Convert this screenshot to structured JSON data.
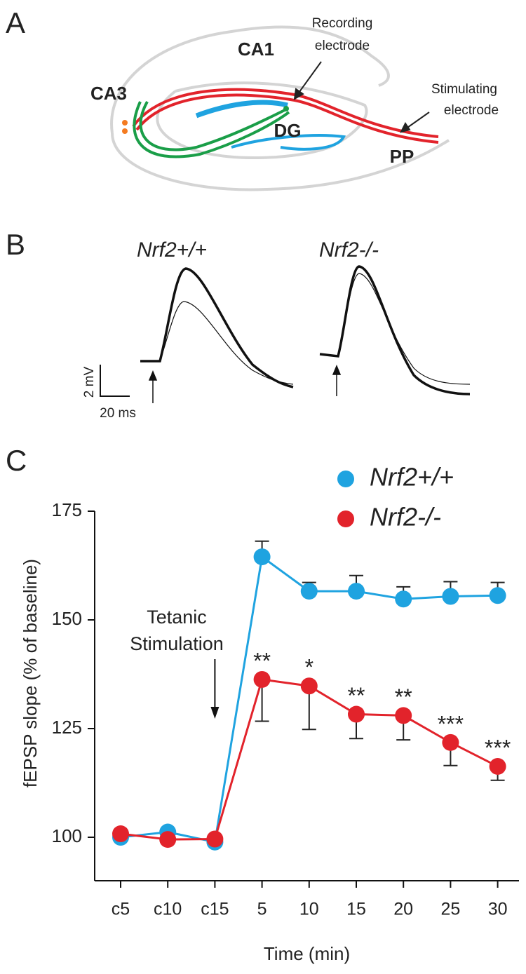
{
  "panel_a": {
    "label": "A",
    "regions": [
      "CA1",
      "CA3",
      "DG",
      "PP"
    ],
    "recording": [
      "Recording",
      "electrode"
    ],
    "stimulating": [
      "Stimulating",
      "electrode"
    ]
  },
  "panel_b": {
    "label": "B",
    "traces": [
      "Nrf2+/+",
      "Nrf2-/-"
    ],
    "scale_y": "2 mV",
    "scale_x": "20 ms"
  },
  "chart_data": {
    "type": "line",
    "panel_label": "C",
    "categories": [
      "c5",
      "c10",
      "c15",
      "5",
      "10",
      "15",
      "20",
      "25",
      "30"
    ],
    "x_label": "Time (min)",
    "y_label": "fEPSP slope (% of baseline)",
    "ylim": [
      90,
      175
    ],
    "yticks": [
      100,
      125,
      150,
      175
    ],
    "annotation": [
      "Tetanic",
      "Stimulation"
    ],
    "annotation_category": 2,
    "series": [
      {
        "name": "Nrf2+/+",
        "color": "#1fa3e0",
        "error_direction": "up",
        "values": [
          100,
          101.2,
          98.9,
          164.5,
          156.6,
          156.6,
          154.8,
          155.4,
          155.6
        ],
        "errors": [
          null,
          null,
          null,
          3.6,
          2,
          3.6,
          2.8,
          3.4,
          3
        ]
      },
      {
        "name": "Nrf2-/-",
        "color": "#e2232b",
        "error_direction": "down",
        "values": [
          100.8,
          99.5,
          99.6,
          136.3,
          134.8,
          128.3,
          128,
          121.8,
          116.3
        ],
        "errors": [
          null,
          null,
          null,
          9.6,
          10,
          5.6,
          5.6,
          5.3,
          3.2
        ],
        "significance": [
          null,
          null,
          null,
          "**",
          "*",
          "**",
          "**",
          "***",
          "***"
        ]
      }
    ]
  }
}
